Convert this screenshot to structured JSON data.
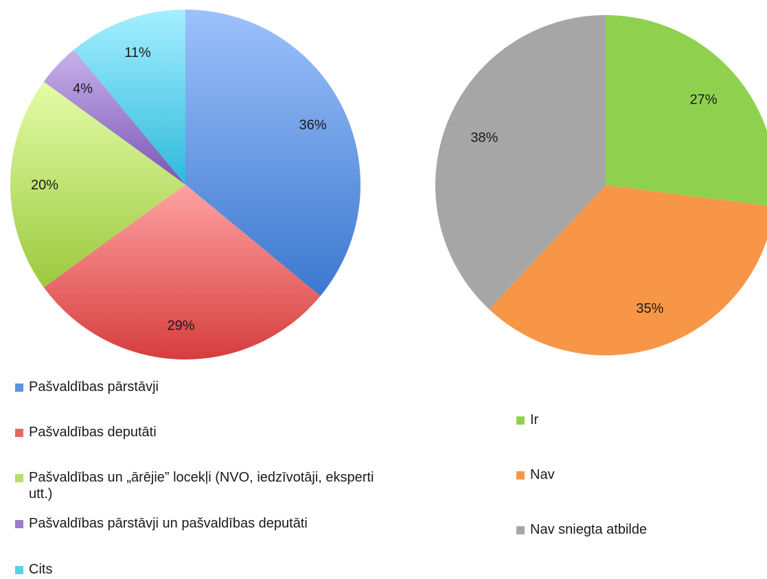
{
  "chart_data": [
    {
      "type": "pie",
      "slices": [
        {
          "label": "Pašvaldības pārstāvji",
          "value": 36,
          "value_label": "36%",
          "color": "#4f86d4"
        },
        {
          "label": "Pašvaldības deputāti",
          "value": 29,
          "value_label": "29%",
          "color": "#e06666"
        },
        {
          "label": "Pašvaldības un „ārējie”  locekļi (NVO, iedzīvotāji, eksperti utt.)",
          "value": 20,
          "value_label": "20%",
          "color": "#b7dd6a"
        },
        {
          "label": "Pašvaldības pārstāvji un pašvaldības deputāti",
          "value": 4,
          "value_label": "4%",
          "color": "#9b7ccc"
        },
        {
          "label": "Cits",
          "value": 11,
          "value_label": "11%",
          "color": "#5bcfe8"
        }
      ],
      "legend_position": "bottom"
    },
    {
      "type": "pie",
      "slices": [
        {
          "label": "Ir",
          "value": 27,
          "value_label": "27%",
          "color": "#8fd14f"
        },
        {
          "label": "Nav",
          "value": 35,
          "value_label": "35%",
          "color": "#f79646"
        },
        {
          "label": "Nav sniegta atbilde",
          "value": 38,
          "value_label": "38%",
          "color": "#a6a6a6"
        }
      ],
      "legend_position": "bottom"
    }
  ]
}
